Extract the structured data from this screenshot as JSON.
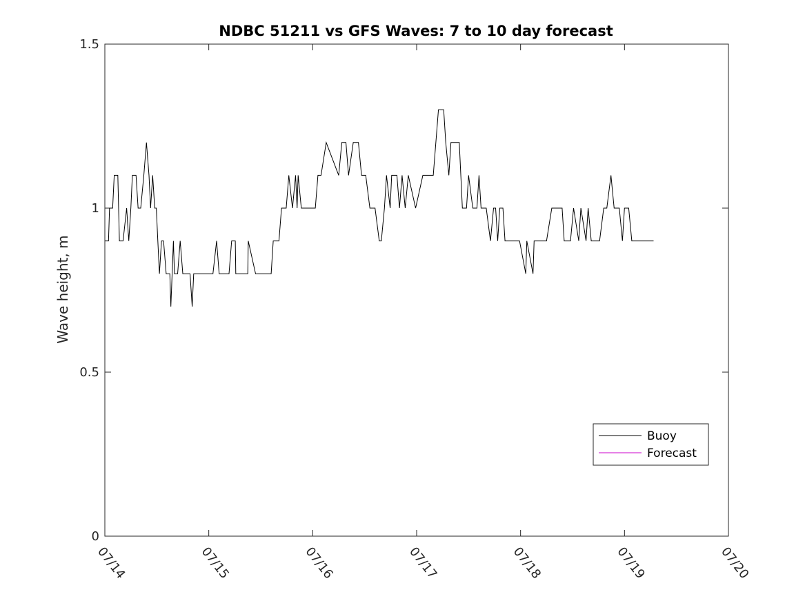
{
  "chart_data": {
    "type": "line",
    "title": "NDBC 51211 vs GFS Waves: 7 to 10 day forecast",
    "xlabel": "",
    "ylabel": "Wave height, m",
    "xlim": [
      0,
      6
    ],
    "ylim": [
      0,
      1.5
    ],
    "x_ticks": [
      0,
      1,
      2,
      3,
      4,
      5,
      6
    ],
    "x_tick_labels": [
      "07/14",
      "07/15",
      "07/16",
      "07/17",
      "07/18",
      "07/19",
      "07/20"
    ],
    "y_ticks": [
      0,
      0.5,
      1,
      1.5
    ],
    "y_tick_labels": [
      "0",
      "0.5",
      "1",
      "1.5"
    ],
    "x_unit_note": "days since 07/14 00:00",
    "grid": false,
    "legend_position": "lower-right",
    "series": [
      {
        "name": "Buoy",
        "color": "#000000",
        "x": [
          0.0,
          0.035,
          0.045,
          0.075,
          0.09,
          0.125,
          0.14,
          0.175,
          0.21,
          0.23,
          0.25,
          0.265,
          0.3,
          0.32,
          0.345,
          0.375,
          0.4,
          0.425,
          0.44,
          0.46,
          0.48,
          0.495,
          0.51,
          0.525,
          0.545,
          0.565,
          0.59,
          0.625,
          0.635,
          0.66,
          0.67,
          0.7,
          0.725,
          0.75,
          0.77,
          0.82,
          0.84,
          0.855,
          0.875,
          0.9,
          0.93,
          0.96,
          1.04,
          1.075,
          1.1,
          1.195,
          1.22,
          1.255,
          1.26,
          1.29,
          1.325,
          1.375,
          1.38,
          1.45,
          1.47,
          1.5,
          1.6,
          1.62,
          1.675,
          1.7,
          1.745,
          1.77,
          1.805,
          1.835,
          1.85,
          1.86,
          1.89,
          1.91,
          1.935,
          2.0,
          2.025,
          2.05,
          2.08,
          2.13,
          2.25,
          2.28,
          2.3,
          2.32,
          2.345,
          2.39,
          2.44,
          2.47,
          2.51,
          2.55,
          2.6,
          2.64,
          2.66,
          2.69,
          2.71,
          2.745,
          2.76,
          2.79,
          2.81,
          2.835,
          2.86,
          2.89,
          2.92,
          2.99,
          3.06,
          3.11,
          3.16,
          3.21,
          3.26,
          3.28,
          3.31,
          3.33,
          3.37,
          3.41,
          3.44,
          3.48,
          3.5,
          3.54,
          3.58,
          3.6,
          3.62,
          3.67,
          3.71,
          3.74,
          3.76,
          3.78,
          3.8,
          3.83,
          3.85,
          3.88,
          3.94,
          3.96,
          3.99,
          4.05,
          4.06,
          4.12,
          4.13,
          4.16,
          4.17,
          4.19,
          4.21,
          4.24,
          4.25,
          4.3,
          4.4,
          4.42,
          4.48,
          4.51,
          4.56,
          4.58,
          4.63,
          4.65,
          4.68,
          4.71,
          4.73,
          4.76,
          4.8,
          4.83,
          4.87,
          4.9,
          4.95,
          4.98,
          5.0,
          5.04,
          5.07,
          5.11,
          5.13,
          5.16,
          5.19,
          5.22,
          5.28
        ],
        "y": [
          0.9,
          0.9,
          1.0,
          1.0,
          1.1,
          1.1,
          0.9,
          0.9,
          1.0,
          0.9,
          1.0,
          1.1,
          1.1,
          1.0,
          1.0,
          1.1,
          1.2,
          1.1,
          1.0,
          1.1,
          1.0,
          1.0,
          0.9,
          0.8,
          0.9,
          0.9,
          0.8,
          0.8,
          0.7,
          0.9,
          0.8,
          0.8,
          0.9,
          0.8,
          0.8,
          0.8,
          0.7,
          0.8,
          0.8,
          0.8,
          0.8,
          0.8,
          0.8,
          0.9,
          0.8,
          0.8,
          0.9,
          0.9,
          0.8,
          0.8,
          0.8,
          0.8,
          0.9,
          0.8,
          0.8,
          0.8,
          0.8,
          0.9,
          0.9,
          1.0,
          1.0,
          1.1,
          1.0,
          1.1,
          1.0,
          1.1,
          1.0,
          1.0,
          1.0,
          1.0,
          1.0,
          1.1,
          1.1,
          1.2,
          1.1,
          1.2,
          1.2,
          1.2,
          1.1,
          1.2,
          1.2,
          1.1,
          1.1,
          1.0,
          1.0,
          0.9,
          0.9,
          1.0,
          1.1,
          1.0,
          1.1,
          1.1,
          1.1,
          1.0,
          1.1,
          1.0,
          1.1,
          1.0,
          1.1,
          1.1,
          1.1,
          1.3,
          1.3,
          1.2,
          1.1,
          1.2,
          1.2,
          1.2,
          1.0,
          1.0,
          1.1,
          1.0,
          1.0,
          1.1,
          1.0,
          1.0,
          0.9,
          1.0,
          1.0,
          0.9,
          1.0,
          1.0,
          0.9,
          0.9,
          0.9,
          0.9,
          0.9,
          0.8,
          0.9,
          0.8,
          0.9,
          0.9,
          0.9,
          0.9,
          0.9,
          0.9,
          0.9,
          1.0,
          1.0,
          0.9,
          0.9,
          1.0,
          0.9,
          1.0,
          0.9,
          1.0,
          0.9,
          0.9,
          0.9,
          0.9,
          1.0,
          1.0,
          1.1,
          1.0,
          1.0,
          0.9,
          1.0,
          1.0,
          0.9,
          0.9,
          0.9,
          0.9,
          0.9,
          0.9,
          0.9
        ]
      },
      {
        "name": "Forecast",
        "color": "#cc00cc",
        "x": [],
        "y": []
      }
    ]
  }
}
